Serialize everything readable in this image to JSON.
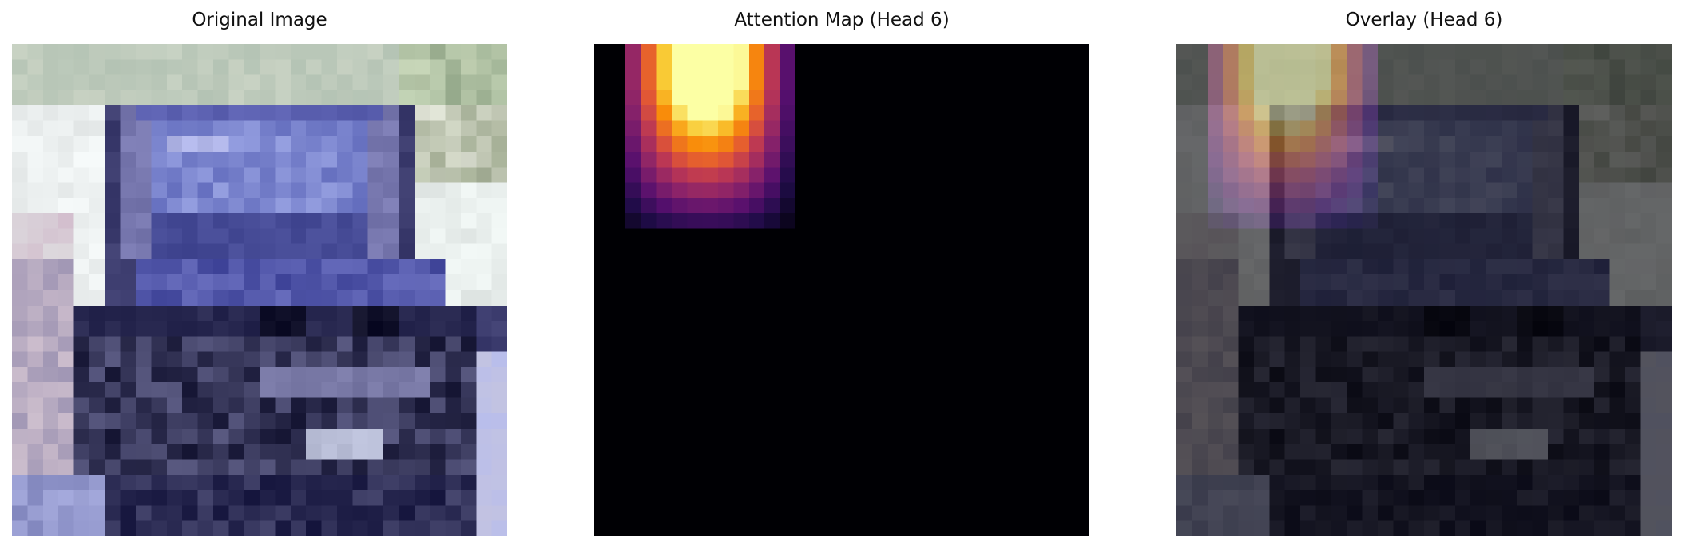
{
  "panels": [
    {
      "title": "Original Image"
    },
    {
      "title": "Attention Map (Head 6)"
    },
    {
      "title": "Overlay (Head 6)"
    }
  ],
  "colormap": "inferno",
  "grid": [
    32,
    32
  ],
  "axes": "off"
}
